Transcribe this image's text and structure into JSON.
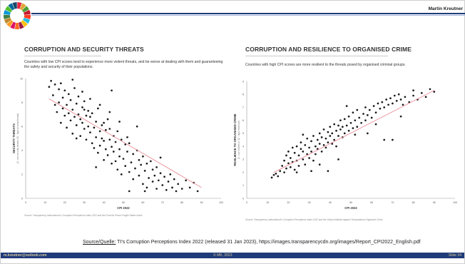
{
  "header": {
    "author": "Martin Kreutner",
    "logo_colors": [
      "#e5243b",
      "#dda63a",
      "#4c9f38",
      "#c5192d",
      "#ff3a21",
      "#26bde2",
      "#fcc30b",
      "#a21942",
      "#fd6925",
      "#dd1367",
      "#fd9d24",
      "#bf8b2e",
      "#3f7e44",
      "#0a97d9",
      "#56c02b",
      "#00689d",
      "#19486a"
    ]
  },
  "left_panel": {
    "title": "CORRUPTION AND SECURITY THREATS",
    "description": "Countries with low CPI scores tend to experience more violent threats, and be worse at dealing with them and guaranteeing the safety and security of their populations.",
    "source_note": "Source: Transparency International's Corruption Perceptions Index 2022 and the Fund for Peace Fragile States Index."
  },
  "right_panel": {
    "title": "CORRUPTION AND RESILIENCE TO ORGANISED CRIME",
    "description": "Countries with high CPI scores are more resilient to the threats posed by organised criminal groups.",
    "source_note": "Source: Transparency International's Corruption Perceptions Index 2022 and the Global Initiative Against Transnational Organized Crime."
  },
  "source_line": {
    "label": "Source/Quelle:",
    "text": " TI's Corruption Perceptions Index 2022 (released 31 Jan 2023), https://images.transparencycdn.org/images/Report_CPI2022_English.pdf"
  },
  "footer": {
    "email": "m.kreutner@outlook.com",
    "copyright": "© MK, 2023",
    "slide_number": "Slide 34"
  },
  "chart_data": [
    {
      "type": "scatter",
      "title": "CORRUPTION AND SECURITY THREATS",
      "xlabel": "CPI 2022",
      "ylabel": "SECURITY THREATS",
      "ylabel_sub": "(0 - low security threats; 10 - high security threats)",
      "xlim": [
        0,
        100
      ],
      "ylim": [
        0,
        10
      ],
      "xticks": [
        0,
        10,
        20,
        30,
        40,
        50,
        60,
        70,
        80,
        90,
        100
      ],
      "yticks": [
        0,
        2,
        4,
        6,
        8,
        10
      ],
      "grid": false,
      "trendline": {
        "from": [
          12,
          8.3
        ],
        "to": [
          90,
          0.9
        ],
        "color": "#e8909a"
      },
      "point_color": "#1a1a1a",
      "points": [
        [
          12,
          9.3
        ],
        [
          13,
          9.8
        ],
        [
          14,
          8.6
        ],
        [
          15,
          9.5
        ],
        [
          16,
          7.2
        ],
        [
          17,
          8.0
        ],
        [
          17,
          9.1
        ],
        [
          18,
          6.3
        ],
        [
          19,
          8.4
        ],
        [
          19,
          7.5
        ],
        [
          20,
          9.0
        ],
        [
          20,
          6.9
        ],
        [
          21,
          7.8
        ],
        [
          21,
          5.9
        ],
        [
          22,
          8.7
        ],
        [
          22,
          7.1
        ],
        [
          23,
          6.5
        ],
        [
          23,
          8.2
        ],
        [
          24,
          7.4
        ],
        [
          24,
          5.4
        ],
        [
          25,
          9.2
        ],
        [
          25,
          6.8
        ],
        [
          26,
          7.9
        ],
        [
          26,
          6.1
        ],
        [
          27,
          8.5
        ],
        [
          27,
          7.0
        ],
        [
          28,
          6.6
        ],
        [
          28,
          5.2
        ],
        [
          29,
          7.6
        ],
        [
          29,
          6.3
        ],
        [
          30,
          8.1
        ],
        [
          30,
          5.8
        ],
        [
          31,
          6.9
        ],
        [
          31,
          4.9
        ],
        [
          32,
          7.3
        ],
        [
          32,
          6.0
        ],
        [
          33,
          5.5
        ],
        [
          33,
          6.8
        ],
        [
          34,
          4.6
        ],
        [
          34,
          7.1
        ],
        [
          35,
          5.9
        ],
        [
          35,
          4.2
        ],
        [
          36,
          6.4
        ],
        [
          36,
          5.1
        ],
        [
          37,
          7.5
        ],
        [
          37,
          3.8
        ],
        [
          38,
          5.6
        ],
        [
          38,
          4.4
        ],
        [
          39,
          6.1
        ],
        [
          39,
          5.0
        ],
        [
          40,
          4.8
        ],
        [
          40,
          3.2
        ],
        [
          41,
          5.7
        ],
        [
          41,
          4.1
        ],
        [
          42,
          6.6
        ],
        [
          42,
          3.6
        ],
        [
          43,
          4.9
        ],
        [
          43,
          5.8
        ],
        [
          44,
          2.9
        ],
        [
          44,
          4.3
        ],
        [
          45,
          5.2
        ],
        [
          45,
          3.9
        ],
        [
          46,
          3.1
        ],
        [
          46,
          4.7
        ],
        [
          47,
          2.4
        ],
        [
          47,
          5.6
        ],
        [
          48,
          3.5
        ],
        [
          48,
          4.1
        ],
        [
          49,
          2.0
        ],
        [
          49,
          4.9
        ],
        [
          50,
          3.3
        ],
        [
          51,
          4.5
        ],
        [
          51,
          2.7
        ],
        [
          52,
          3.9
        ],
        [
          53,
          2.2
        ],
        [
          53,
          4.6
        ],
        [
          54,
          3.0
        ],
        [
          55,
          1.6
        ],
        [
          55,
          3.7
        ],
        [
          56,
          2.5
        ],
        [
          57,
          4.0
        ],
        [
          58,
          1.9
        ],
        [
          58,
          3.2
        ],
        [
          59,
          2.8
        ],
        [
          60,
          1.2
        ],
        [
          60,
          3.5
        ],
        [
          61,
          2.3
        ],
        [
          62,
          0.9
        ],
        [
          62,
          2.9
        ],
        [
          63,
          1.7
        ],
        [
          64,
          3.1
        ],
        [
          65,
          1.4
        ],
        [
          65,
          2.4
        ],
        [
          66,
          1.9
        ],
        [
          67,
          0.8
        ],
        [
          67,
          2.6
        ],
        [
          68,
          1.5
        ],
        [
          69,
          2.1
        ],
        [
          70,
          1.1
        ],
        [
          71,
          1.8
        ],
        [
          72,
          0.7
        ],
        [
          73,
          1.4
        ],
        [
          74,
          2.0
        ],
        [
          75,
          0.9
        ],
        [
          76,
          1.6
        ],
        [
          77,
          0.6
        ],
        [
          78,
          1.2
        ],
        [
          80,
          0.8
        ],
        [
          82,
          1.5
        ],
        [
          84,
          0.9
        ],
        [
          86,
          1.3
        ],
        [
          88,
          0.6
        ],
        [
          15,
          7.8
        ],
        [
          18,
          9.6
        ],
        [
          24,
          9.9
        ],
        [
          29,
          8.9
        ],
        [
          33,
          8.3
        ],
        [
          38,
          7.8
        ],
        [
          43,
          7.2
        ],
        [
          48,
          6.4
        ],
        [
          52,
          5.1
        ],
        [
          57,
          6.0
        ],
        [
          44,
          9.0
        ],
        [
          30,
          7.4
        ],
        [
          26,
          5.0
        ],
        [
          36,
          2.6
        ],
        [
          40,
          6.3
        ],
        [
          53,
          0.6
        ],
        [
          61,
          0.6
        ],
        [
          69,
          3.4
        ]
      ]
    },
    {
      "type": "scatter",
      "title": "CORRUPTION AND RESILIENCE TO ORGANISED CRIME",
      "xlabel": "CPI 2022",
      "ylabel": "RESILIENCE TO ORGANISED CRIME",
      "ylabel_sub": "(0 - low resilience; 10 - high resilience)",
      "xlim": [
        0,
        100
      ],
      "ylim": [
        0,
        9
      ],
      "xticks": [
        0,
        10,
        20,
        30,
        40,
        50,
        60,
        70,
        80,
        90,
        100
      ],
      "yticks": [
        0,
        1,
        2,
        3,
        4,
        5,
        6,
        7,
        8,
        9
      ],
      "grid": false,
      "trendline": {
        "from": [
          13,
          2.0
        ],
        "to": [
          90,
          8.3
        ],
        "color": "#e8909a"
      },
      "point_color": "#1a1a1a",
      "points": [
        [
          12,
          1.6
        ],
        [
          13,
          1.8
        ],
        [
          14,
          1.9
        ],
        [
          15,
          1.7
        ],
        [
          16,
          2.1
        ],
        [
          17,
          2.5
        ],
        [
          18,
          2.9
        ],
        [
          18,
          2.0
        ],
        [
          19,
          2.3
        ],
        [
          19,
          3.3
        ],
        [
          20,
          2.7
        ],
        [
          20,
          3.6
        ],
        [
          21,
          2.4
        ],
        [
          21,
          3.1
        ],
        [
          22,
          3.9
        ],
        [
          22,
          2.8
        ],
        [
          23,
          2.2
        ],
        [
          23,
          3.5
        ],
        [
          24,
          2.9
        ],
        [
          24,
          4.0
        ],
        [
          25,
          3.3
        ],
        [
          25,
          2.5
        ],
        [
          26,
          3.8
        ],
        [
          26,
          4.3
        ],
        [
          27,
          3.0
        ],
        [
          27,
          3.6
        ],
        [
          28,
          4.1
        ],
        [
          28,
          2.6
        ],
        [
          29,
          3.4
        ],
        [
          29,
          4.6
        ],
        [
          30,
          3.9
        ],
        [
          30,
          3.1
        ],
        [
          31,
          4.4
        ],
        [
          31,
          3.6
        ],
        [
          32,
          2.9
        ],
        [
          32,
          4.8
        ],
        [
          33,
          4.0
        ],
        [
          33,
          3.4
        ],
        [
          34,
          4.5
        ],
        [
          34,
          3.8
        ],
        [
          35,
          5.0
        ],
        [
          35,
          4.2
        ],
        [
          36,
          3.6
        ],
        [
          36,
          4.7
        ],
        [
          37,
          4.1
        ],
        [
          37,
          5.3
        ],
        [
          38,
          3.9
        ],
        [
          38,
          4.6
        ],
        [
          39,
          5.1
        ],
        [
          39,
          4.3
        ],
        [
          40,
          4.8
        ],
        [
          40,
          5.5
        ],
        [
          41,
          4.2
        ],
        [
          41,
          5.0
        ],
        [
          42,
          5.7
        ],
        [
          42,
          4.5
        ],
        [
          43,
          5.2
        ],
        [
          43,
          4.0
        ],
        [
          44,
          5.6
        ],
        [
          44,
          4.8
        ],
        [
          45,
          5.3
        ],
        [
          45,
          6.0
        ],
        [
          46,
          4.7
        ],
        [
          46,
          5.5
        ],
        [
          47,
          6.1
        ],
        [
          47,
          5.0
        ],
        [
          48,
          5.6
        ],
        [
          49,
          5.2
        ],
        [
          49,
          6.3
        ],
        [
          50,
          5.8
        ],
        [
          51,
          5.4
        ],
        [
          51,
          6.6
        ],
        [
          52,
          6.0
        ],
        [
          53,
          5.5
        ],
        [
          53,
          6.8
        ],
        [
          54,
          6.2
        ],
        [
          55,
          5.8
        ],
        [
          56,
          6.5
        ],
        [
          57,
          6.0
        ],
        [
          57,
          7.0
        ],
        [
          58,
          6.4
        ],
        [
          59,
          6.8
        ],
        [
          60,
          6.2
        ],
        [
          61,
          7.1
        ],
        [
          62,
          6.6
        ],
        [
          63,
          7.3
        ],
        [
          64,
          6.9
        ],
        [
          65,
          7.4
        ],
        [
          66,
          7.0
        ],
        [
          67,
          7.6
        ],
        [
          68,
          7.2
        ],
        [
          69,
          7.7
        ],
        [
          70,
          7.3
        ],
        [
          71,
          7.9
        ],
        [
          72,
          7.5
        ],
        [
          73,
          8.0
        ],
        [
          74,
          7.6
        ],
        [
          75,
          7.2
        ],
        [
          76,
          7.8
        ],
        [
          78,
          7.4
        ],
        [
          80,
          7.9
        ],
        [
          82,
          7.6
        ],
        [
          84,
          8.1
        ],
        [
          86,
          7.8
        ],
        [
          88,
          8.4
        ],
        [
          90,
          8.2
        ],
        [
          31,
          2.1
        ],
        [
          39,
          2.1
        ],
        [
          58,
          5.0
        ],
        [
          66,
          4.5
        ],
        [
          70,
          4.5
        ],
        [
          44,
          3.0
        ],
        [
          35,
          2.6
        ],
        [
          52,
          4.9
        ],
        [
          27,
          4.9
        ],
        [
          62,
          5.7
        ],
        [
          48,
          7.1
        ],
        [
          74,
          6.3
        ],
        [
          80,
          8.3
        ],
        [
          24,
          2.0
        ]
      ]
    }
  ]
}
